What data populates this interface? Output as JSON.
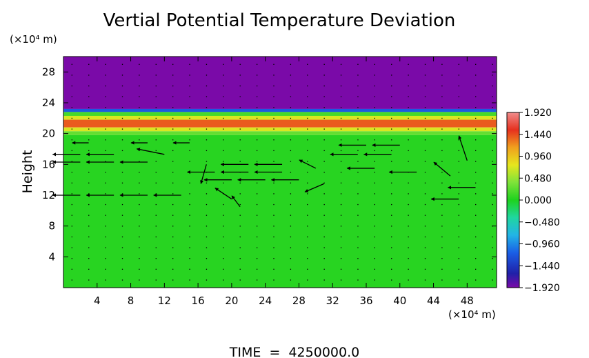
{
  "chart_data": {
    "type": "heatmap",
    "title": "Vertial Potential Temperature Deviation",
    "ylabel": "Height",
    "y_unit": "(×10⁴ m)",
    "x_unit": "(×10⁴ m)",
    "xlim": [
      0,
      51.5
    ],
    "ylim": [
      0,
      30
    ],
    "x_ticks": [
      4,
      8,
      12,
      16,
      20,
      24,
      28,
      32,
      36,
      40,
      44,
      48
    ],
    "y_ticks": [
      4,
      8,
      12,
      16,
      20,
      24,
      28
    ],
    "colorbar": {
      "ticks": [
        1.92,
        1.44,
        0.96,
        0.48,
        0.0,
        -0.48,
        -0.96,
        -1.44,
        -1.92
      ],
      "tick_labels": [
        "1.920",
        "1.440",
        "0.960",
        "0.480",
        "0.000",
        "−0.480",
        "−0.960",
        "−1.440",
        "−1.920"
      ],
      "range": [
        -1.92,
        1.92
      ]
    },
    "field_bands": [
      {
        "y_from": 23.2,
        "y_to": 30.0,
        "value": -1.92
      },
      {
        "y_from": 22.8,
        "y_to": 23.2,
        "value": -1.0
      },
      {
        "y_from": 22.3,
        "y_to": 22.8,
        "value": 0.2
      },
      {
        "y_from": 21.8,
        "y_to": 22.3,
        "value": 0.9
      },
      {
        "y_from": 20.8,
        "y_to": 21.8,
        "value": 1.6
      },
      {
        "y_from": 20.3,
        "y_to": 20.8,
        "value": 0.9
      },
      {
        "y_from": 19.8,
        "y_to": 20.3,
        "value": 0.35
      },
      {
        "y_from": 0.0,
        "y_to": 19.8,
        "value": 0.05
      }
    ],
    "wind_arrows": [
      {
        "x": 2,
        "y": 12,
        "u": -1,
        "v": 0
      },
      {
        "x": 6,
        "y": 12,
        "u": -1,
        "v": 0
      },
      {
        "x": 10,
        "y": 12,
        "u": -1,
        "v": 0
      },
      {
        "x": 14,
        "y": 12,
        "u": -1,
        "v": 0
      },
      {
        "x": 2,
        "y": 16.3,
        "u": -1,
        "v": 0
      },
      {
        "x": 6,
        "y": 16.3,
        "u": -1,
        "v": 0
      },
      {
        "x": 10,
        "y": 16.3,
        "u": -1,
        "v": 0
      },
      {
        "x": 2,
        "y": 17.3,
        "u": -1,
        "v": 0
      },
      {
        "x": 6,
        "y": 17.3,
        "u": -1,
        "v": 0
      },
      {
        "x": 12,
        "y": 17.3,
        "u": -1,
        "v": 0.2
      },
      {
        "x": 3,
        "y": 18.8,
        "u": -0.6,
        "v": 0
      },
      {
        "x": 10,
        "y": 18.8,
        "u": -0.6,
        "v": 0
      },
      {
        "x": 15,
        "y": 18.8,
        "u": -0.6,
        "v": 0
      },
      {
        "x": 18,
        "y": 15.0,
        "u": -1,
        "v": 0
      },
      {
        "x": 22,
        "y": 15.0,
        "u": -1,
        "v": 0
      },
      {
        "x": 26,
        "y": 15.0,
        "u": -1,
        "v": 0
      },
      {
        "x": 20,
        "y": 14.0,
        "u": -1,
        "v": 0
      },
      {
        "x": 24,
        "y": 14.0,
        "u": -1,
        "v": 0
      },
      {
        "x": 28,
        "y": 14.0,
        "u": -1,
        "v": 0
      },
      {
        "x": 22,
        "y": 16.0,
        "u": -1,
        "v": 0
      },
      {
        "x": 26,
        "y": 16.0,
        "u": -1,
        "v": 0
      },
      {
        "x": 31,
        "y": 13.5,
        "u": -0.7,
        "v": -0.3
      },
      {
        "x": 30,
        "y": 15.5,
        "u": -0.6,
        "v": 0.3
      },
      {
        "x": 36,
        "y": 18.5,
        "u": -1,
        "v": 0
      },
      {
        "x": 40,
        "y": 18.5,
        "u": -1,
        "v": 0
      },
      {
        "x": 35,
        "y": 17.3,
        "u": -1,
        "v": 0
      },
      {
        "x": 39,
        "y": 17.3,
        "u": -1,
        "v": 0
      },
      {
        "x": 37,
        "y": 15.5,
        "u": -1,
        "v": 0
      },
      {
        "x": 42,
        "y": 15.0,
        "u": -1,
        "v": 0
      },
      {
        "x": 46,
        "y": 14.5,
        "u": -0.6,
        "v": 0.5
      },
      {
        "x": 48,
        "y": 16.5,
        "u": -0.3,
        "v": 0.9
      },
      {
        "x": 49,
        "y": 13.0,
        "u": -1,
        "v": 0
      },
      {
        "x": 47,
        "y": 11.5,
        "u": -1,
        "v": 0
      },
      {
        "x": 17,
        "y": 16.0,
        "u": -0.2,
        "v": -0.7
      },
      {
        "x": 20,
        "y": 11.5,
        "u": -0.6,
        "v": 0.4
      },
      {
        "x": 21,
        "y": 10.5,
        "u": -0.3,
        "v": 0.4
      }
    ],
    "footer": "TIME  =  4250000.0"
  }
}
